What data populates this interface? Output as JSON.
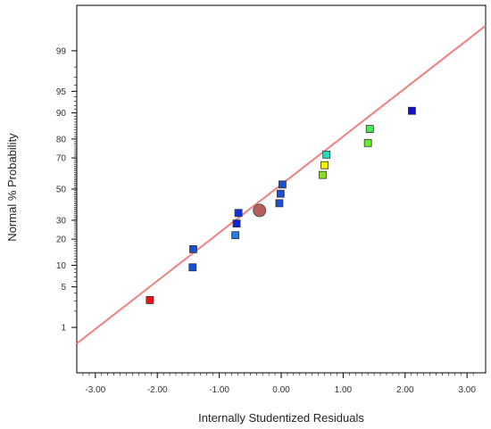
{
  "chart_data": {
    "type": "scatter",
    "title": "",
    "xlabel": "Internally Studentized Residuals",
    "ylabel": "Normal % Probability",
    "xlim": [
      -3.3,
      3.3
    ],
    "x_ticks": [
      -3,
      -2,
      -1,
      0,
      1,
      2,
      3
    ],
    "x_tick_labels": [
      "-3.00",
      "-2.00",
      "-1.00",
      "0.00",
      "1.00",
      "2.00",
      "3.00"
    ],
    "y_scale": "normal-probability",
    "ylim": [
      0.1,
      99.9
    ],
    "y_ticks": [
      1,
      5,
      10,
      20,
      30,
      50,
      70,
      80,
      90,
      95,
      99
    ],
    "y_tick_labels": [
      "1",
      "5",
      "10",
      "20",
      "30",
      "50",
      "70",
      "80",
      "90",
      "95",
      "99"
    ],
    "grid": false,
    "reference_line": {
      "color": "#f08080",
      "points": [
        [
          -3.3,
          0.47
        ],
        [
          3.3,
          99.7
        ]
      ]
    },
    "series": [
      {
        "marker": "square",
        "points": [
          {
            "x": -2.12,
            "y": 3.1,
            "color": "#ee1111"
          },
          {
            "x": -1.43,
            "y": 9.4,
            "color": "#1a4fd6"
          },
          {
            "x": -1.42,
            "y": 15.6,
            "color": "#1a4fd6"
          },
          {
            "x": -0.74,
            "y": 21.9,
            "color": "#2a7ae6"
          },
          {
            "x": -0.72,
            "y": 28.1,
            "color": "#1122dd"
          },
          {
            "x": -0.69,
            "y": 34.4,
            "color": "#1133dd"
          },
          {
            "x": -0.03,
            "y": 40.6,
            "color": "#1a4fd6"
          },
          {
            "x": -0.01,
            "y": 46.9,
            "color": "#1a4fd6"
          },
          {
            "x": 0.02,
            "y": 53.1,
            "color": "#1a4fd6"
          },
          {
            "x": 0.67,
            "y": 59.4,
            "color": "#88dd22"
          },
          {
            "x": 0.7,
            "y": 65.6,
            "color": "#eeee00"
          },
          {
            "x": 0.73,
            "y": 71.9,
            "color": "#22ddbb"
          },
          {
            "x": 1.4,
            "y": 78.1,
            "color": "#66ee22"
          },
          {
            "x": 1.43,
            "y": 84.4,
            "color": "#44ee55"
          },
          {
            "x": 2.11,
            "y": 90.6,
            "color": "#1111cc"
          }
        ]
      }
    ],
    "highlight_point": {
      "x": -0.35,
      "y": 36.0,
      "color": "#b85c5c",
      "marker": "circle"
    }
  }
}
